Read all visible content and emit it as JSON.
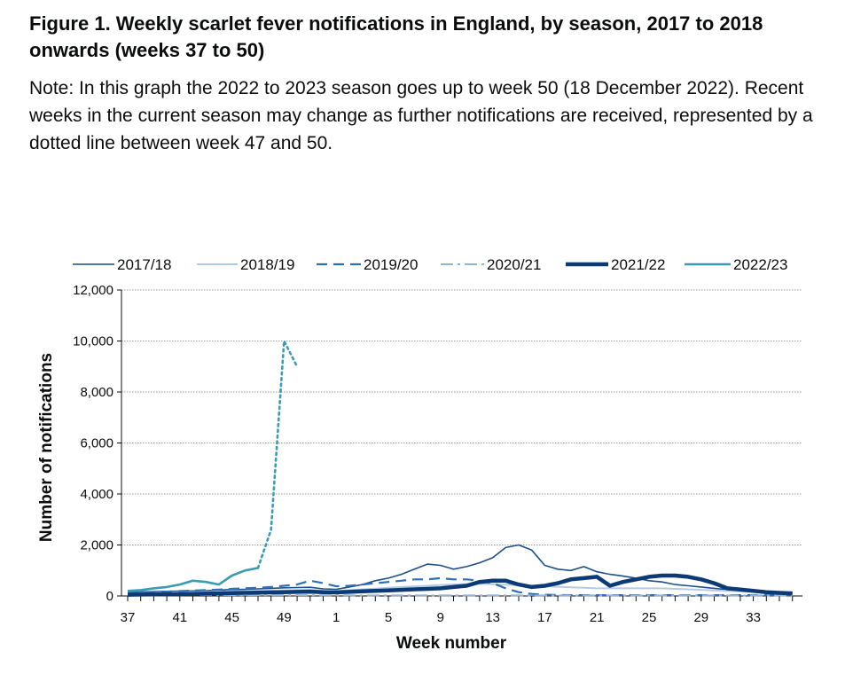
{
  "figure": {
    "title": "Figure 1. Weekly scarlet fever notifications in England, by season, 2017 to 2018 onwards (weeks 37 to 50)",
    "note": "Note: In this graph the 2022 to 2023 season goes up to week 50 (18 December 2022). Recent weeks in the current season may change as further notifications are received, represented by a dotted line between week 47 and 50."
  },
  "chart_data": {
    "type": "line",
    "xlabel": "Week number",
    "ylabel": "Number of notifications",
    "ylim": [
      0,
      12000
    ],
    "yticks": [
      0,
      2000,
      4000,
      6000,
      8000,
      10000,
      12000
    ],
    "ytick_labels": [
      "0",
      "2,000",
      "4,000",
      "6,000",
      "8,000",
      "10,000",
      "12,000"
    ],
    "weeks": [
      37,
      38,
      39,
      40,
      41,
      42,
      43,
      44,
      45,
      46,
      47,
      48,
      49,
      50,
      51,
      52,
      1,
      2,
      3,
      4,
      5,
      6,
      7,
      8,
      9,
      10,
      11,
      12,
      13,
      14,
      15,
      16,
      17,
      18,
      19,
      20,
      21,
      22,
      23,
      24,
      25,
      26,
      27,
      28,
      29,
      30,
      31,
      32,
      33,
      34,
      35,
      36
    ],
    "xtick_labels": [
      "37",
      "41",
      "45",
      "49",
      "1",
      "5",
      "9",
      "13",
      "17",
      "21",
      "25",
      "29",
      "33"
    ],
    "grid": true,
    "legend_position": "top",
    "series": [
      {
        "name": "2017/18",
        "color": "#1d4f8c",
        "style": "solid",
        "width": 1.6,
        "values": [
          150,
          160,
          170,
          180,
          190,
          200,
          210,
          230,
          250,
          260,
          280,
          300,
          320,
          330,
          340,
          280,
          260,
          350,
          450,
          600,
          700,
          850,
          1050,
          1250,
          1200,
          1050,
          1150,
          1300,
          1500,
          1900,
          2000,
          1800,
          1200,
          1050,
          1000,
          1150,
          950,
          850,
          780,
          700,
          600,
          550,
          450,
          400,
          350,
          300,
          250,
          220,
          180,
          150,
          120,
          100
        ]
      },
      {
        "name": "2018/19",
        "color": "#b4cbe6",
        "style": "solid",
        "width": 2,
        "values": [
          100,
          110,
          120,
          130,
          140,
          150,
          160,
          170,
          180,
          190,
          200,
          210,
          220,
          230,
          240,
          200,
          190,
          230,
          260,
          290,
          320,
          350,
          380,
          400,
          430,
          450,
          470,
          480,
          460,
          440,
          420,
          400,
          380,
          360,
          340,
          320,
          300,
          300,
          300,
          300,
          300,
          300,
          280,
          260,
          240,
          220,
          200,
          180,
          160,
          140,
          120,
          100
        ]
      },
      {
        "name": "2019/20",
        "color": "#2e6fb6",
        "style": "dash",
        "width": 2.2,
        "values": [
          120,
          130,
          150,
          170,
          190,
          210,
          230,
          250,
          280,
          300,
          320,
          350,
          400,
          450,
          600,
          500,
          380,
          400,
          450,
          500,
          550,
          600,
          650,
          650,
          700,
          650,
          650,
          600,
          500,
          300,
          150,
          80,
          50,
          40,
          30,
          30,
          30,
          30,
          30,
          30,
          30,
          30,
          30,
          30,
          30,
          30,
          30,
          30,
          30,
          30,
          30,
          30
        ]
      },
      {
        "name": "2020/21",
        "color": "#8fb3d9",
        "style": "dashdot",
        "width": 2,
        "values": [
          60,
          55,
          50,
          45,
          40,
          40,
          35,
          35,
          30,
          30,
          30,
          30,
          30,
          30,
          30,
          25,
          25,
          25,
          20,
          20,
          20,
          20,
          20,
          20,
          20,
          20,
          20,
          20,
          20,
          20,
          20,
          20,
          20,
          20,
          20,
          20,
          20,
          20,
          20,
          20,
          20,
          20,
          20,
          20,
          20,
          20,
          20,
          20,
          20,
          20,
          20,
          20
        ]
      },
      {
        "name": "2021/22",
        "color": "#0b3a74",
        "style": "solid",
        "width": 4.5,
        "values": [
          50,
          55,
          60,
          65,
          70,
          80,
          90,
          100,
          110,
          120,
          130,
          140,
          150,
          160,
          170,
          150,
          140,
          160,
          180,
          200,
          220,
          240,
          260,
          280,
          300,
          350,
          400,
          550,
          600,
          600,
          450,
          350,
          400,
          500,
          650,
          700,
          750,
          400,
          550,
          650,
          750,
          800,
          800,
          750,
          650,
          500,
          300,
          250,
          200,
          150,
          120,
          100
        ]
      },
      {
        "name": "2022/23",
        "color": "#3a9bb2",
        "style": "solid",
        "width": 2.6,
        "values": [
          200,
          230,
          300,
          350,
          450,
          600,
          550,
          450,
          800,
          1000,
          1100,
          null,
          null,
          null
        ]
      },
      {
        "name": "",
        "color": "#3a9bb2",
        "style": "dot",
        "width": 2.6,
        "values": [
          null,
          null,
          null,
          null,
          null,
          null,
          null,
          null,
          null,
          null,
          1100,
          2600,
          10000,
          9000
        ]
      }
    ]
  }
}
